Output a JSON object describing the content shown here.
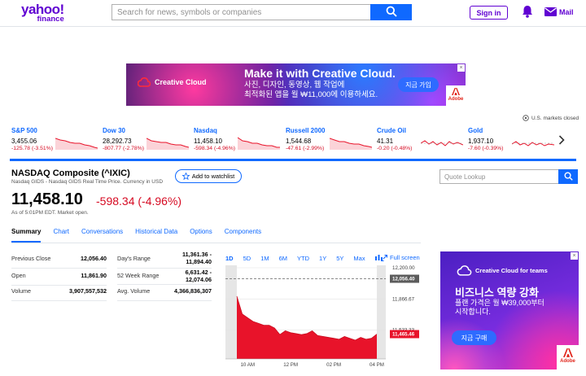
{
  "header": {
    "logo_line1": "yahoo!",
    "logo_line2": "finance",
    "search_placeholder": "Search for news, symbols or companies",
    "signin_label": "Sign in",
    "mail_label": "Mail"
  },
  "ad_top": {
    "brand": "Creative Cloud",
    "headline": "Make it with Creative Cloud.",
    "line1": "사진, 디자인, 동영상, 웹 작업에",
    "line2": "최적화된 앱을 월 ₩11,000에 이용하세요.",
    "cta": "지금 가입",
    "adobe": "Adobe",
    "close": "×"
  },
  "markets": {
    "status": "U.S. markets closed",
    "tickers": [
      {
        "name": "S&P 500",
        "price": "3,455.06",
        "change": "-125.78 (-3.51%)"
      },
      {
        "name": "Dow 30",
        "price": "28,292.73",
        "change": "-807.77 (-2.78%)"
      },
      {
        "name": "Nasdaq",
        "price": "11,458.10",
        "change": "-598.34 (-4.96%)"
      },
      {
        "name": "Russell 2000",
        "price": "1,544.68",
        "change": "-47.61 (-2.99%)"
      },
      {
        "name": "Crude Oil",
        "price": "41.31",
        "change": "-0.20 (-0.48%)"
      },
      {
        "name": "Gold",
        "price": "1,937.10",
        "change": "-7.60 (-0.39%)"
      }
    ]
  },
  "quote": {
    "title": "NASDAQ Composite (^IXIC)",
    "subtitle": "Nasdaq GIDS - Nasdaq GIDS Real Time Price. Currency in USD",
    "watchlist": "Add to watchlist",
    "lookup_placeholder": "Quote Lookup",
    "price": "11,458.10",
    "change": "-598.34 (-4.96%)",
    "asof": "As of 5:01PM EDT. Market open."
  },
  "tabs": [
    "Summary",
    "Chart",
    "Conversations",
    "Historical Data",
    "Options",
    "Components"
  ],
  "stats_left": [
    {
      "key": "Previous Close",
      "value": "12,056.40"
    },
    {
      "key": "Open",
      "value": "11,861.90"
    },
    {
      "key": "Volume",
      "value": "3,907,557,532"
    }
  ],
  "stats_right": [
    {
      "key": "Day's Range",
      "value1": "11,361.36 -",
      "value2": "11,894.40"
    },
    {
      "key": "52 Week Range",
      "value1": "6,631.42 -",
      "value2": "12,074.06"
    },
    {
      "key": "Avg. Volume",
      "value1": "4,366,836,307",
      "value2": ""
    }
  ],
  "chart": {
    "ranges": [
      "1D",
      "5D",
      "1M",
      "6M",
      "YTD",
      "1Y",
      "5Y",
      "Max"
    ],
    "fullscreen": "Full screen",
    "y_ticks": [
      "12,200.00",
      "11,866.67",
      "11,533.33"
    ],
    "prev_close_label": "12,056.40",
    "current_label": "11,465.46",
    "x_ticks": [
      "10 AM",
      "12 PM",
      "02 PM",
      "04 PM"
    ]
  },
  "chart_data": {
    "type": "area",
    "title": "",
    "xlabel": "",
    "ylabel": "",
    "x": [
      "09:30",
      "09:45",
      "10:00",
      "10:15",
      "10:30",
      "10:45",
      "11:00",
      "11:15",
      "11:30",
      "11:45",
      "12:00",
      "12:15",
      "12:30",
      "12:45",
      "13:00",
      "13:15",
      "13:30",
      "13:45",
      "14:00",
      "14:15",
      "14:30",
      "14:45",
      "15:00",
      "15:15",
      "15:30",
      "15:45",
      "16:00"
    ],
    "values": [
      11870,
      11680,
      11640,
      11600,
      11580,
      11560,
      11560,
      11530,
      11460,
      11500,
      11480,
      11470,
      11460,
      11470,
      11500,
      11450,
      11440,
      11430,
      11420,
      11410,
      11440,
      11420,
      11400,
      11430,
      11410,
      11420,
      11465
    ],
    "previous_close": 12056.4,
    "ylim": [
      11200,
      12200
    ],
    "series_color": "#e8132a"
  },
  "ad_right": {
    "brand": "Creative Cloud for teams",
    "headline": "비즈니스 역량 강화",
    "line1": "플랜 가격은 월 ₩39,000부터",
    "line2": "시작합니다.",
    "cta": "지금 구매",
    "adobe": "Adobe",
    "close": "×"
  }
}
